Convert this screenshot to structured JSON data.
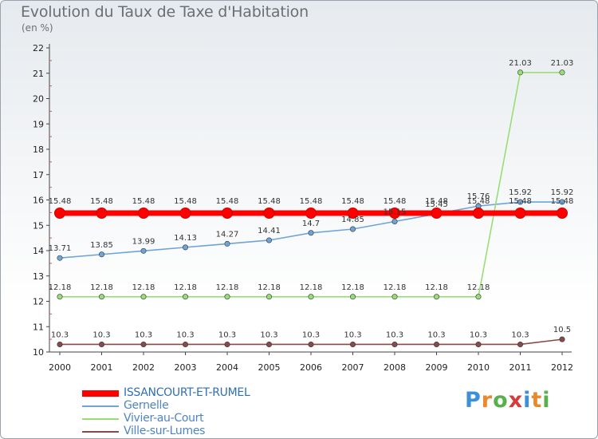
{
  "header": {
    "title": "Evolution du Taux de Taxe d'Habitation",
    "subtitle": "(en %)"
  },
  "chart_data": {
    "type": "line",
    "title": "Evolution du Taux de Taxe d'Habitation",
    "subtitle": "(en %)",
    "xlabel": "",
    "ylabel": "",
    "x": [
      "2000",
      "2001",
      "2002",
      "2003",
      "2004",
      "2005",
      "2006",
      "2007",
      "2008",
      "2009",
      "2010",
      "2011",
      "2012"
    ],
    "ylim": [
      10,
      22
    ],
    "yticks": [
      "10",
      "11",
      "12",
      "13",
      "14",
      "15",
      "16",
      "17",
      "18",
      "19",
      "20",
      "21",
      "22"
    ],
    "grid": false,
    "legend_position": "bottom-left",
    "series": [
      {
        "name": "ISSANCOURT-ET-RUMEL",
        "color": "#ff0000",
        "values": [
          15.48,
          15.48,
          15.48,
          15.48,
          15.48,
          15.48,
          15.48,
          15.48,
          15.48,
          15.48,
          15.48,
          15.48,
          15.48
        ],
        "labels": [
          "15.48",
          "15.48",
          "15.48",
          "15.48",
          "15.48",
          "15.48",
          "15.48",
          "15.48",
          "15.48",
          "15.48",
          "15.48",
          "15.48",
          "15.48"
        ]
      },
      {
        "name": "Gernelle",
        "color": "#6fa4d6",
        "values": [
          13.71,
          13.85,
          13.99,
          14.13,
          14.27,
          14.41,
          14.7,
          14.85,
          15.15,
          15.45,
          15.76,
          15.92,
          15.92
        ],
        "labels": [
          "13.71",
          "13.85",
          "13.99",
          "14.13",
          "14.27",
          "14.41",
          "14.7",
          "14.85",
          "15.15",
          "15.45",
          "15.76",
          "15.92",
          "15.92"
        ]
      },
      {
        "name": "Vivier-au-Court",
        "color": "#99dd77",
        "values": [
          12.18,
          12.18,
          12.18,
          12.18,
          12.18,
          12.18,
          12.18,
          12.18,
          12.18,
          12.18,
          12.18,
          21.03,
          21.03
        ],
        "labels": [
          "12.18",
          "12.18",
          "12.18",
          "12.18",
          "12.18",
          "12.18",
          "12.18",
          "12.18",
          "12.18",
          "12.18",
          "12.18",
          "21.03",
          "21.03"
        ]
      },
      {
        "name": "Ville-sur-Lumes",
        "color": "#8a4a4a",
        "values": [
          10.3,
          10.3,
          10.3,
          10.3,
          10.3,
          10.3,
          10.3,
          10.3,
          10.3,
          10.3,
          10.3,
          10.3,
          10.5
        ],
        "labels": [
          "10.3",
          "10.3",
          "10.3",
          "10.3",
          "10.3",
          "10.3",
          "10.3",
          "10.3",
          "10.3",
          "10.3",
          "10.3",
          "10.3",
          "10.5"
        ]
      }
    ]
  },
  "logo": {
    "letters": [
      "P",
      "r",
      "o",
      "x",
      "i",
      "t",
      "i"
    ],
    "colors": [
      "#3d8fd8",
      "#e8892c",
      "#58b04a",
      "#d83a3a",
      "#3d8fd8",
      "#e8892c",
      "#58b04a"
    ]
  }
}
